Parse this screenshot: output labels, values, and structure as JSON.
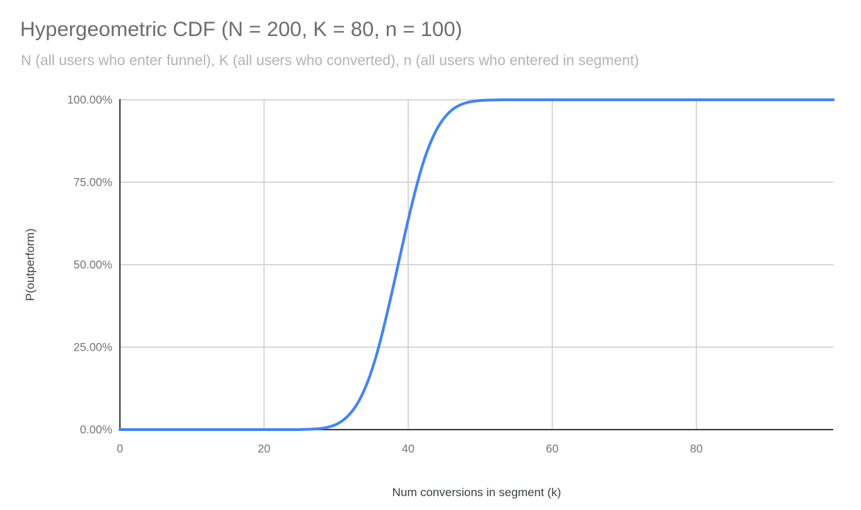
{
  "colors": {
    "background": "#ffffff",
    "line": "#4285f4",
    "grid": "#cccccc",
    "axis": "#3b3b3b",
    "title_text": "#6d6d6d",
    "subtitle_text": "#b3b3b3",
    "tick_text": "#757575",
    "axis_title_text": "#3c4043"
  },
  "chart_data": {
    "type": "line",
    "title": "Hypergeometric CDF (N = 200, K = 80, n = 100)",
    "subtitle": "N (all users who enter funnel), K (all users who converted), n (all users who entered in segment)",
    "xlabel": "Num conversions in segment (k)",
    "ylabel": "P(outperform)",
    "xlim": [
      0,
      99
    ],
    "ylim": [
      0,
      1
    ],
    "grid": true,
    "legend": "none",
    "x_ticks": [
      {
        "value": 0,
        "label": "0"
      },
      {
        "value": 20,
        "label": "20"
      },
      {
        "value": 40,
        "label": "40"
      },
      {
        "value": 60,
        "label": "60"
      },
      {
        "value": 80,
        "label": "80"
      }
    ],
    "y_ticks": [
      {
        "value": 0,
        "label": "0.00%"
      },
      {
        "value": 0.25,
        "label": "25.00%"
      },
      {
        "value": 0.5,
        "label": "50.00%"
      },
      {
        "value": 0.75,
        "label": "75.00%"
      },
      {
        "value": 1,
        "label": "100.00%"
      }
    ],
    "series": [
      {
        "name": "P(outperform)",
        "color": "#4285f4",
        "points": [
          [
            0,
            0
          ],
          [
            5,
            0
          ],
          [
            10,
            0
          ],
          [
            15,
            0
          ],
          [
            20,
            0
          ],
          [
            22,
            0
          ],
          [
            23,
            0.0001
          ],
          [
            24,
            0.0001
          ],
          [
            25,
            0.0003
          ],
          [
            26,
            0.0008
          ],
          [
            27,
            0.0018
          ],
          [
            28,
            0.0038
          ],
          [
            29,
            0.0078
          ],
          [
            30,
            0.015
          ],
          [
            31,
            0.028
          ],
          [
            32,
            0.0485
          ],
          [
            33,
            0.079
          ],
          [
            34,
            0.123
          ],
          [
            35,
            0.181
          ],
          [
            36,
            0.256
          ],
          [
            37,
            0.345
          ],
          [
            38,
            0.44
          ],
          [
            39,
            0.54
          ],
          [
            40,
            0.637
          ],
          [
            41,
            0.726
          ],
          [
            42,
            0.805
          ],
          [
            43,
            0.866
          ],
          [
            44,
            0.913
          ],
          [
            45,
            0.946
          ],
          [
            46,
            0.969
          ],
          [
            47,
            0.983
          ],
          [
            48,
            0.991
          ],
          [
            49,
            0.9956
          ],
          [
            50,
            0.998
          ],
          [
            51,
            0.999
          ],
          [
            52,
            0.9996
          ],
          [
            53,
            0.9999
          ],
          [
            54,
            1
          ],
          [
            55,
            1
          ],
          [
            60,
            1
          ],
          [
            65,
            1
          ],
          [
            70,
            1
          ],
          [
            75,
            1
          ],
          [
            80,
            1
          ],
          [
            85,
            1
          ],
          [
            90,
            1
          ],
          [
            95,
            1
          ],
          [
            99,
            1
          ]
        ]
      }
    ]
  }
}
